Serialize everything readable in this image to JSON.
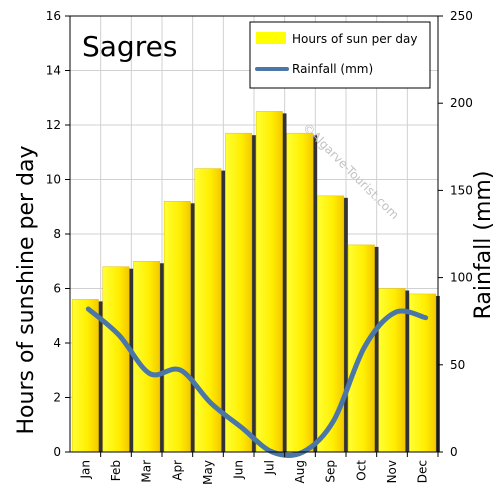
{
  "chart_data": {
    "type": "bar",
    "title": "Sagres",
    "categories": [
      "Jan",
      "Feb",
      "Mar",
      "Apr",
      "May",
      "Jun",
      "Jul",
      "Aug",
      "Sep",
      "Oct",
      "Nov",
      "Dec"
    ],
    "series": [
      {
        "name": "Hours of sun per day",
        "type": "bar",
        "axis": "left",
        "color": "#ffff00",
        "values": [
          5.6,
          6.8,
          7.0,
          9.2,
          10.4,
          11.7,
          12.5,
          11.7,
          9.4,
          7.6,
          6.0,
          5.8
        ]
      },
      {
        "name": "Rainfall (mm)",
        "type": "line",
        "axis": "right",
        "color": "#4a76a8",
        "values": [
          82,
          67,
          45,
          47,
          28,
          14,
          0,
          0,
          18,
          60,
          80,
          77
        ]
      }
    ],
    "y_left": {
      "label": "Hours of sunshine per day",
      "min": 0,
      "max": 16,
      "ticks": [
        0,
        2,
        4,
        6,
        8,
        10,
        12,
        14,
        16
      ]
    },
    "y_right": {
      "label": "Rainfall (mm)",
      "min": 0,
      "max": 250,
      "ticks": [
        0,
        50,
        100,
        150,
        200,
        250
      ]
    },
    "watermark": "©Algarve-Tourist.com",
    "legend_position": "top-right",
    "grid": true
  }
}
